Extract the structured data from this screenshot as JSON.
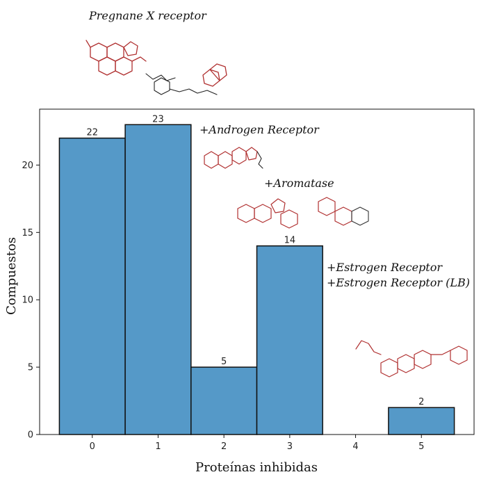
{
  "chart_data": {
    "type": "bar",
    "x_values": [
      0,
      1,
      2,
      3,
      4,
      5
    ],
    "values": [
      22,
      23,
      5,
      14,
      0,
      2
    ],
    "data_labels": [
      "22",
      "23",
      "5",
      "14",
      "",
      "2"
    ],
    "xlabel": "Proteínas inhibidas",
    "ylabel": "Compuestos",
    "xticks": [
      "0",
      "1",
      "2",
      "3",
      "4",
      "5"
    ],
    "yticks": [
      "0",
      "5",
      "10",
      "15",
      "20"
    ],
    "ylim": [
      0,
      24.15
    ],
    "grid": false,
    "bar_color": "#5599c8",
    "edge_color": "#111111",
    "annotations": [
      "Pregnane X receptor",
      "+Androgen Receptor",
      "+Aromatase",
      "+Estrogen Receptor",
      "+Estrogen Receptor (LB)"
    ]
  },
  "molecule_icons": [
    "steroid-structure-icon"
  ]
}
